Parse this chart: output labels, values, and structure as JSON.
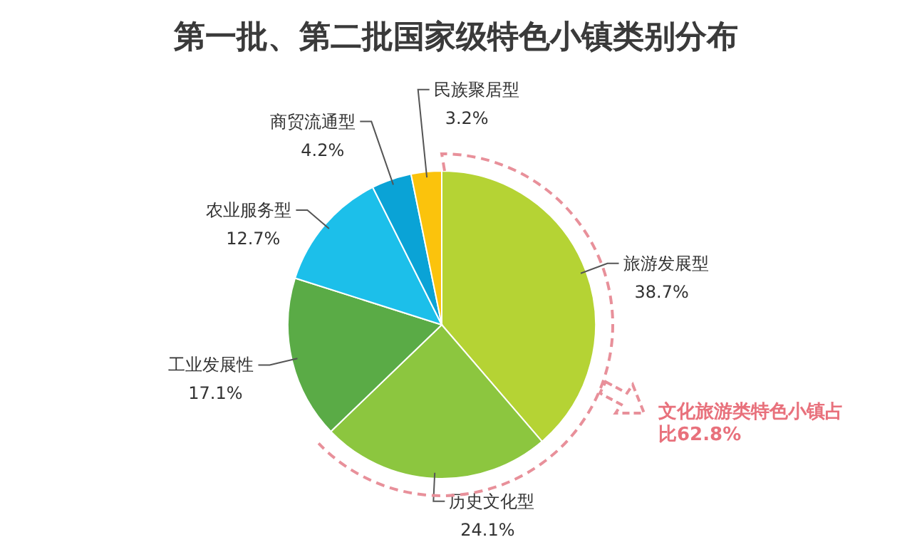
{
  "chart_data": {
    "type": "pie",
    "title": "第一批、第二批国家级特色小镇类别分布",
    "categories": [
      "旅游发展型",
      "历史文化型",
      "工业发展性",
      "农业服务型",
      "商贸流通型",
      "民族聚居型"
    ],
    "values": [
      38.7,
      24.1,
      17.1,
      12.7,
      4.2,
      3.2
    ],
    "colors": [
      "#b5d334",
      "#8cc63f",
      "#5aab46",
      "#1cbfea",
      "#0aa3d6",
      "#fbc30c"
    ],
    "value_labels": [
      "38.7%",
      "24.1%",
      "17.1%",
      "12.7%",
      "4.2%",
      "3.2%"
    ],
    "annotations": [
      "文化旅游类特色小镇占比62.8%"
    ]
  }
}
